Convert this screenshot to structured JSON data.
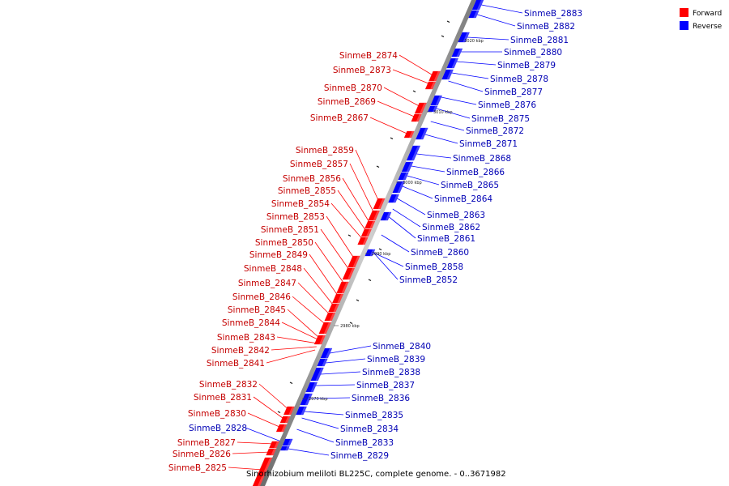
{
  "title": "Sinorhizobium meliloti BL225C, complete genome. - 0..3671982",
  "legend": [
    {
      "label": "Forward",
      "color": "#ff0000"
    },
    {
      "label": "Reverse",
      "color": "#0000ff"
    }
  ],
  "colors": {
    "forward": "#ff0000",
    "reverse": "#0000ff",
    "label_forward": "#c40000",
    "label_reverse": "#0000b4",
    "backbone": "#999999"
  },
  "ticks": [
    "3020 kbp",
    "3010 kbp",
    "3000 kbp",
    "2990 kbp",
    "2980 kbp",
    "2970 kbp"
  ],
  "forward_labels": [
    "SinmeB_2874",
    "SinmeB_2873",
    "SinmeB_2870",
    "SinmeB_2869",
    "SinmeB_2867",
    "SinmeB_2859",
    "SinmeB_2857",
    "SinmeB_2856",
    "SinmeB_2855",
    "SinmeB_2854",
    "SinmeB_2853",
    "SinmeB_2851",
    "SinmeB_2850",
    "SinmeB_2849",
    "SinmeB_2848",
    "SinmeB_2847",
    "SinmeB_2846",
    "SinmeB_2845",
    "SinmeB_2844",
    "SinmeB_2843",
    "SinmeB_2842",
    "SinmeB_2841",
    "SinmeB_2832",
    "SinmeB_2831",
    "SinmeB_2830",
    "SinmeB_2827",
    "SinmeB_2826",
    "SinmeB_2825"
  ],
  "reverse_labels": [
    "SinmeB_2883",
    "SinmeB_2882",
    "SinmeB_2881",
    "SinmeB_2880",
    "SinmeB_2879",
    "SinmeB_2878",
    "SinmeB_2877",
    "SinmeB_2876",
    "SinmeB_2875",
    "SinmeB_2872",
    "SinmeB_2871",
    "SinmeB_2868",
    "SinmeB_2866",
    "SinmeB_2865",
    "SinmeB_2864",
    "SinmeB_2863",
    "SinmeB_2862",
    "SinmeB_2861",
    "SinmeB_2860",
    "SinmeB_2858",
    "SinmeB_2852",
    "SinmeB_2840",
    "SinmeB_2839",
    "SinmeB_2838",
    "SinmeB_2837",
    "SinmeB_2836",
    "SinmeB_2835",
    "SinmeB_2834",
    "SinmeB_2833",
    "SinmeB_2828",
    "SinmeB_2829"
  ]
}
